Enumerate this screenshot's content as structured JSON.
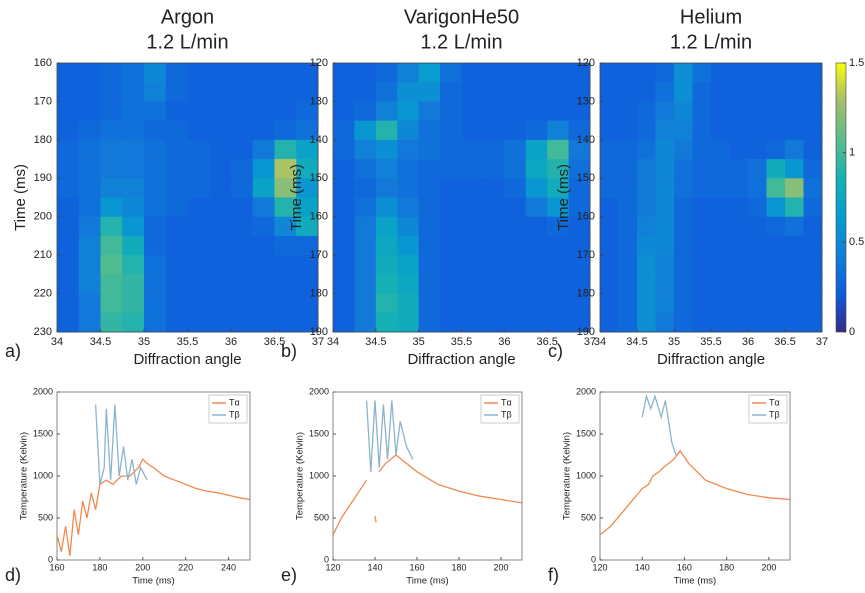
{
  "chart_data": [
    {
      "type": "heatmap",
      "title": "Argon",
      "subtitle": "1.2 L/min",
      "panel_label": "a)",
      "xlabel": "Diffraction angle",
      "ylabel": "Time (ms)",
      "xlim": [
        34,
        37
      ],
      "xticks": [
        34,
        34.5,
        35,
        35.5,
        36,
        36.5,
        37
      ],
      "ylim": [
        160,
        230
      ],
      "yticks": [
        160,
        170,
        180,
        190,
        200,
        210,
        220,
        230
      ],
      "y_inverted": true,
      "xbins": [
        34,
        34.25,
        34.5,
        34.75,
        35,
        35.25,
        35.5,
        35.75,
        36,
        36.25,
        36.5,
        36.75,
        37
      ],
      "ybins": [
        160,
        165,
        170,
        175,
        180,
        185,
        190,
        195,
        200,
        205,
        210,
        215,
        220,
        225,
        230
      ],
      "z": [
        [
          0.25,
          0.25,
          0.3,
          0.35,
          0.5,
          0.3,
          0.25,
          0.25,
          0.25,
          0.25,
          0.25,
          0.25
        ],
        [
          0.25,
          0.25,
          0.3,
          0.35,
          0.45,
          0.3,
          0.25,
          0.25,
          0.25,
          0.25,
          0.25,
          0.25
        ],
        [
          0.25,
          0.25,
          0.3,
          0.35,
          0.35,
          0.25,
          0.25,
          0.25,
          0.25,
          0.25,
          0.25,
          0.3
        ],
        [
          0.25,
          0.3,
          0.35,
          0.35,
          0.3,
          0.3,
          0.25,
          0.25,
          0.25,
          0.25,
          0.3,
          0.35
        ],
        [
          0.3,
          0.35,
          0.4,
          0.4,
          0.35,
          0.3,
          0.3,
          0.25,
          0.25,
          0.4,
          0.9,
          0.7
        ],
        [
          0.3,
          0.35,
          0.4,
          0.4,
          0.35,
          0.3,
          0.3,
          0.25,
          0.3,
          0.6,
          1.3,
          0.8
        ],
        [
          0.3,
          0.35,
          0.45,
          0.45,
          0.35,
          0.3,
          0.3,
          0.25,
          0.3,
          0.7,
          1.2,
          0.6
        ],
        [
          0.25,
          0.35,
          0.6,
          0.5,
          0.35,
          0.3,
          0.25,
          0.25,
          0.25,
          0.4,
          0.9,
          0.7
        ],
        [
          0.25,
          0.4,
          0.9,
          0.6,
          0.3,
          0.25,
          0.25,
          0.25,
          0.25,
          0.3,
          0.5,
          0.8
        ],
        [
          0.25,
          0.45,
          1.0,
          0.8,
          0.3,
          0.25,
          0.25,
          0.25,
          0.25,
          0.25,
          0.3,
          0.3
        ],
        [
          0.25,
          0.45,
          1.05,
          0.9,
          0.35,
          0.25,
          0.25,
          0.25,
          0.25,
          0.25,
          0.25,
          0.25
        ],
        [
          0.25,
          0.45,
          1.0,
          0.95,
          0.35,
          0.25,
          0.25,
          0.25,
          0.25,
          0.25,
          0.25,
          0.25
        ],
        [
          0.25,
          0.4,
          1.0,
          0.95,
          0.35,
          0.25,
          0.25,
          0.25,
          0.25,
          0.25,
          0.25,
          0.25
        ],
        [
          0.25,
          0.4,
          0.95,
          0.9,
          0.35,
          0.25,
          0.25,
          0.25,
          0.25,
          0.25,
          0.25,
          0.25
        ]
      ]
    },
    {
      "type": "heatmap",
      "title": "VarigonHe50",
      "subtitle": "1.2 L/min",
      "panel_label": "b)",
      "xlabel": "Diffraction angle",
      "ylabel": "Time (ms)",
      "xlim": [
        34,
        37
      ],
      "xticks": [
        34,
        34.5,
        35,
        35.5,
        36,
        36.5,
        37
      ],
      "ylim": [
        120,
        190
      ],
      "yticks": [
        120,
        130,
        140,
        150,
        160,
        170,
        180,
        190
      ],
      "y_inverted": true,
      "xbins": [
        34,
        34.25,
        34.5,
        34.75,
        35,
        35.25,
        35.5,
        35.75,
        36,
        36.25,
        36.5,
        36.75,
        37
      ],
      "ybins": [
        120,
        125,
        130,
        135,
        140,
        145,
        150,
        155,
        160,
        165,
        170,
        175,
        180,
        185,
        190
      ],
      "z": [
        [
          0.25,
          0.25,
          0.3,
          0.45,
          0.65,
          0.35,
          0.25,
          0.25,
          0.25,
          0.25,
          0.25,
          0.25
        ],
        [
          0.25,
          0.25,
          0.35,
          0.55,
          0.55,
          0.3,
          0.25,
          0.25,
          0.25,
          0.25,
          0.25,
          0.25
        ],
        [
          0.25,
          0.3,
          0.45,
          0.6,
          0.4,
          0.3,
          0.25,
          0.25,
          0.25,
          0.25,
          0.25,
          0.25
        ],
        [
          0.3,
          0.6,
          0.9,
          0.5,
          0.35,
          0.3,
          0.25,
          0.25,
          0.25,
          0.3,
          0.45,
          0.3
        ],
        [
          0.3,
          0.45,
          0.55,
          0.4,
          0.35,
          0.3,
          0.3,
          0.3,
          0.35,
          0.7,
          1.0,
          0.4
        ],
        [
          0.25,
          0.35,
          0.45,
          0.35,
          0.3,
          0.3,
          0.3,
          0.3,
          0.35,
          0.75,
          0.9,
          0.35
        ],
        [
          0.25,
          0.3,
          0.4,
          0.35,
          0.3,
          0.25,
          0.25,
          0.25,
          0.3,
          0.6,
          0.8,
          0.3
        ],
        [
          0.25,
          0.35,
          0.55,
          0.4,
          0.3,
          0.25,
          0.25,
          0.25,
          0.25,
          0.4,
          0.6,
          0.3
        ],
        [
          0.25,
          0.4,
          0.7,
          0.5,
          0.3,
          0.25,
          0.25,
          0.25,
          0.25,
          0.25,
          0.3,
          0.25
        ],
        [
          0.25,
          0.4,
          0.75,
          0.6,
          0.3,
          0.25,
          0.25,
          0.25,
          0.25,
          0.25,
          0.25,
          0.25
        ],
        [
          0.25,
          0.4,
          0.8,
          0.7,
          0.3,
          0.25,
          0.25,
          0.25,
          0.25,
          0.25,
          0.25,
          0.25
        ],
        [
          0.25,
          0.4,
          0.85,
          0.75,
          0.3,
          0.25,
          0.25,
          0.25,
          0.25,
          0.25,
          0.25,
          0.25
        ],
        [
          0.25,
          0.4,
          0.9,
          0.8,
          0.3,
          0.25,
          0.25,
          0.25,
          0.25,
          0.25,
          0.25,
          0.25
        ],
        [
          0.25,
          0.4,
          0.85,
          0.8,
          0.3,
          0.25,
          0.25,
          0.25,
          0.25,
          0.25,
          0.25,
          0.25
        ]
      ]
    },
    {
      "type": "heatmap",
      "title": "Helium",
      "subtitle": "1.2 L/min",
      "panel_label": "c)",
      "xlabel": "Diffraction angle",
      "ylabel": "Time (ms)",
      "xlim": [
        34,
        37
      ],
      "xticks": [
        34,
        34.5,
        35,
        35.5,
        36,
        36.5,
        37
      ],
      "ylim": [
        120,
        190
      ],
      "yticks": [
        120,
        130,
        140,
        150,
        160,
        170,
        180,
        190
      ],
      "y_inverted": true,
      "zlim": [
        0,
        1.5
      ],
      "zticks": [
        0,
        0.5,
        1,
        1.5
      ],
      "xbins": [
        34,
        34.25,
        34.5,
        34.75,
        35,
        35.25,
        35.5,
        35.75,
        36,
        36.25,
        36.5,
        36.75,
        37
      ],
      "ybins": [
        120,
        125,
        130,
        135,
        140,
        145,
        150,
        155,
        160,
        165,
        170,
        175,
        180,
        185,
        190
      ],
      "z": [
        [
          0.25,
          0.25,
          0.25,
          0.3,
          0.55,
          0.35,
          0.25,
          0.25,
          0.25,
          0.25,
          0.25,
          0.25
        ],
        [
          0.25,
          0.25,
          0.25,
          0.35,
          0.55,
          0.3,
          0.25,
          0.25,
          0.25,
          0.25,
          0.25,
          0.25
        ],
        [
          0.25,
          0.25,
          0.3,
          0.4,
          0.5,
          0.3,
          0.25,
          0.25,
          0.25,
          0.25,
          0.25,
          0.25
        ],
        [
          0.25,
          0.25,
          0.3,
          0.45,
          0.45,
          0.3,
          0.25,
          0.25,
          0.25,
          0.25,
          0.25,
          0.25
        ],
        [
          0.3,
          0.3,
          0.35,
          0.5,
          0.4,
          0.3,
          0.3,
          0.25,
          0.25,
          0.3,
          0.4,
          0.25
        ],
        [
          0.3,
          0.3,
          0.4,
          0.5,
          0.35,
          0.3,
          0.3,
          0.3,
          0.35,
          0.8,
          0.6,
          0.3
        ],
        [
          0.3,
          0.3,
          0.4,
          0.5,
          0.35,
          0.3,
          0.3,
          0.3,
          0.35,
          1.0,
          1.2,
          0.35
        ],
        [
          0.25,
          0.3,
          0.4,
          0.5,
          0.3,
          0.25,
          0.25,
          0.25,
          0.3,
          0.6,
          0.9,
          0.3
        ],
        [
          0.25,
          0.3,
          0.45,
          0.5,
          0.3,
          0.25,
          0.25,
          0.25,
          0.25,
          0.3,
          0.35,
          0.25
        ],
        [
          0.25,
          0.3,
          0.5,
          0.5,
          0.3,
          0.25,
          0.25,
          0.25,
          0.25,
          0.25,
          0.25,
          0.25
        ],
        [
          0.25,
          0.3,
          0.55,
          0.45,
          0.3,
          0.25,
          0.25,
          0.25,
          0.25,
          0.25,
          0.25,
          0.25
        ],
        [
          0.25,
          0.3,
          0.55,
          0.45,
          0.3,
          0.25,
          0.25,
          0.25,
          0.25,
          0.25,
          0.25,
          0.25
        ],
        [
          0.25,
          0.3,
          0.55,
          0.45,
          0.3,
          0.25,
          0.25,
          0.25,
          0.25,
          0.25,
          0.25,
          0.25
        ],
        [
          0.25,
          0.3,
          0.55,
          0.4,
          0.3,
          0.25,
          0.25,
          0.25,
          0.25,
          0.25,
          0.25,
          0.25
        ]
      ]
    },
    {
      "type": "line",
      "panel_label": "d)",
      "xlabel": "Time (ms)",
      "ylabel": "Temperature (Kelvin)",
      "legend": "upper right",
      "xlim": [
        160,
        250
      ],
      "xticks": [
        160,
        180,
        200,
        220,
        240
      ],
      "ylim": [
        0,
        2000
      ],
      "yticks": [
        0,
        500,
        1000,
        1500,
        2000
      ],
      "series": [
        {
          "name": "Tα",
          "color": "#ef8a4f",
          "x": [
            160,
            162,
            164,
            166,
            168,
            170,
            172,
            174,
            176,
            178,
            180,
            183,
            186,
            190,
            194,
            198,
            200,
            202,
            205,
            210,
            215,
            220,
            225,
            230,
            235,
            240,
            245,
            250
          ],
          "values": [
            300,
            100,
            400,
            50,
            600,
            300,
            700,
            500,
            800,
            600,
            900,
            950,
            900,
            1000,
            1000,
            1100,
            1200,
            1150,
            1100,
            1000,
            950,
            900,
            850,
            820,
            800,
            770,
            740,
            720
          ]
        },
        {
          "name": "Tβ",
          "color": "#8db4cd",
          "x": [
            178,
            180,
            182,
            183,
            185,
            187,
            189,
            191,
            193,
            195,
            197,
            199,
            202
          ],
          "values": [
            1850,
            900,
            1100,
            1800,
            950,
            1850,
            1000,
            1350,
            950,
            1200,
            900,
            1100,
            950
          ]
        }
      ]
    },
    {
      "type": "line",
      "panel_label": "e)",
      "xlabel": "Time (ms)",
      "ylabel": "Temperature (Kelvin)",
      "legend": "upper right",
      "xlim": [
        120,
        210
      ],
      "xticks": [
        120,
        140,
        160,
        180,
        200
      ],
      "ylim": [
        0,
        2000
      ],
      "yticks": [
        0,
        500,
        1000,
        1500,
        2000
      ],
      "series": [
        {
          "name": "Tα",
          "color": "#ef8a4f",
          "x": [
            120,
            124,
            128,
            132,
            136,
            138,
            140,
            140.5,
            141,
            142,
            145,
            150,
            155,
            160,
            170,
            180,
            190,
            200,
            210
          ],
          "values": [
            300,
            500,
            650,
            800,
            950,
            null,
            520,
            450,
            null,
            1050,
            1150,
            1250,
            1150,
            1050,
            900,
            820,
            760,
            720,
            680
          ]
        },
        {
          "name": "Tβ",
          "color": "#8db4cd",
          "x": [
            136,
            138,
            140,
            142,
            144,
            146,
            148,
            150,
            152,
            155,
            158
          ],
          "values": [
            1900,
            1050,
            1900,
            1100,
            1850,
            1200,
            1900,
            1250,
            1650,
            1350,
            1200
          ]
        }
      ]
    },
    {
      "type": "line",
      "panel_label": "f)",
      "xlabel": "Time (ms)",
      "ylabel": "Temperature (Kelvin)",
      "legend": "upper right",
      "xlim": [
        120,
        210
      ],
      "xticks": [
        120,
        140,
        160,
        180,
        200
      ],
      "ylim": [
        0,
        2000
      ],
      "yticks": [
        0,
        500,
        1000,
        1500,
        2000
      ],
      "series": [
        {
          "name": "Tα",
          "color": "#ef8a4f",
          "x": [
            120,
            125,
            130,
            135,
            140,
            143,
            145,
            148,
            150,
            155,
            158,
            162,
            170,
            180,
            190,
            200,
            210
          ],
          "values": [
            300,
            400,
            550,
            700,
            850,
            900,
            1000,
            1050,
            1100,
            1200,
            1300,
            1150,
            950,
            850,
            780,
            740,
            720
          ]
        },
        {
          "name": "Tβ",
          "color": "#8db4cd",
          "x": [
            140,
            142,
            144,
            146,
            149,
            151,
            154,
            156
          ],
          "values": [
            1700,
            1950,
            1800,
            1950,
            1700,
            1900,
            1400,
            1250
          ]
        }
      ]
    }
  ]
}
